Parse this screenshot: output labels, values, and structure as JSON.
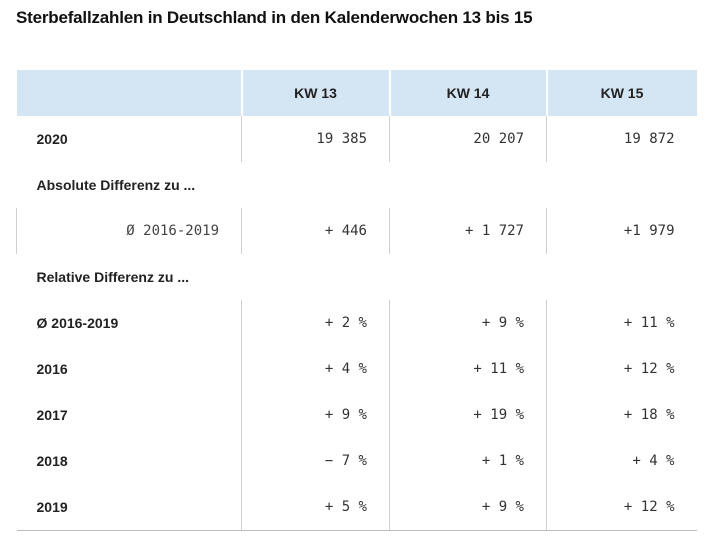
{
  "title": "Sterbefallzahlen in Deutschland in den Kalenderwochen 13 bis 15",
  "headers": [
    "",
    "KW 13",
    "KW 14",
    "KW 15"
  ],
  "rows": [
    {
      "label": "2020",
      "values": [
        "19 385",
        "20 207",
        "19 872"
      ]
    },
    {
      "section": "Absolute Differenz zu ..."
    },
    {
      "sublabel": "Ø 2016-2019",
      "values": [
        "+ 446",
        "+ 1 727",
        "+1 979"
      ]
    },
    {
      "section": "Relative Differenz zu ..."
    },
    {
      "label": "Ø 2016-2019",
      "values": [
        "+ 2 %",
        "+ 9 %",
        "+ 11 %"
      ]
    },
    {
      "label": "2016",
      "values": [
        "+ 4 %",
        "+ 11 %",
        "+ 12 %"
      ]
    },
    {
      "label": "2017",
      "values": [
        "+ 9 %",
        "+ 19 %",
        "+ 18 %"
      ]
    },
    {
      "label": "2018",
      "values": [
        "− 7 %",
        "+ 1 %",
        "+ 4 %"
      ]
    },
    {
      "label": "2019",
      "values": [
        "+ 5 %",
        "+ 9 %",
        "+ 12 %"
      ]
    }
  ]
}
